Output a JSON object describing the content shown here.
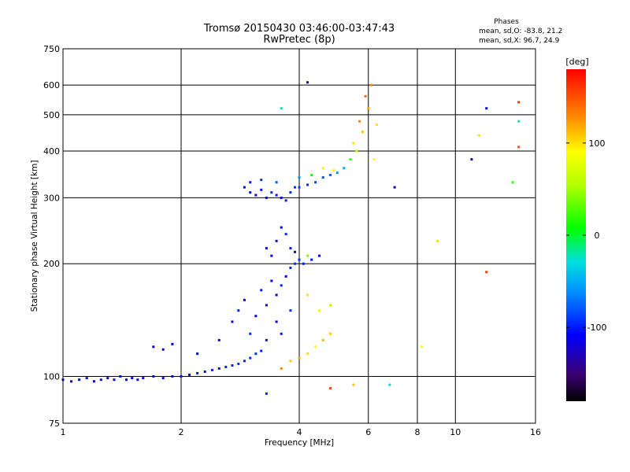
{
  "chart_data": {
    "type": "scatter",
    "title": "Tromsø 20150430 03:46:00-03:47:43",
    "subtitle": "RwPretec (8p)",
    "xlabel": "Frequency [MHz]",
    "ylabel": "Stationary phase Virtual Height [km]",
    "x_scale": "log",
    "y_scale": "log",
    "xlim": [
      1,
      16
    ],
    "ylim": [
      75,
      750
    ],
    "x_ticks": [
      1,
      2,
      4,
      6,
      8,
      10,
      16
    ],
    "y_ticks": [
      75,
      100,
      200,
      300,
      400,
      500,
      600,
      750
    ],
    "grid": true,
    "phase_stats": {
      "heading": "Phases",
      "o_line": "mean, sd,O: -83.8, 21.2",
      "x_line": "mean, sd,X:  96.7, 24.9"
    },
    "colorbar": {
      "unit": "[deg]",
      "ticks": [
        100,
        0,
        -100
      ],
      "range": [
        -180,
        180
      ]
    },
    "series": [
      {
        "comment_key": "E-region trace",
        "points": [
          [
            1.0,
            98,
            -110
          ],
          [
            1.05,
            97,
            -115
          ],
          [
            1.1,
            98,
            -112
          ],
          [
            1.15,
            99,
            -105
          ],
          [
            1.2,
            97,
            -118
          ],
          [
            1.25,
            98,
            -110
          ],
          [
            1.3,
            99,
            -108
          ],
          [
            1.35,
            98,
            -113
          ],
          [
            1.4,
            100,
            -106
          ],
          [
            1.45,
            98,
            -115
          ],
          [
            1.5,
            99,
            -110
          ],
          [
            1.55,
            98,
            -112
          ],
          [
            1.6,
            99,
            -107
          ],
          [
            1.7,
            100,
            -110
          ],
          [
            1.8,
            99,
            -108
          ],
          [
            1.9,
            100,
            -112
          ],
          [
            2.0,
            100,
            -105
          ],
          [
            2.1,
            101,
            -110
          ],
          [
            2.2,
            102,
            -100
          ],
          [
            2.3,
            103,
            -108
          ],
          [
            2.4,
            104,
            -95
          ],
          [
            2.5,
            105,
            -102
          ],
          [
            2.6,
            106,
            -98
          ],
          [
            2.7,
            107,
            -100
          ],
          [
            2.8,
            108,
            -94
          ],
          [
            2.9,
            110,
            -100
          ],
          [
            3.0,
            112,
            -96
          ],
          [
            3.1,
            115,
            -92
          ],
          [
            3.2,
            117,
            -100
          ]
        ]
      },
      {
        "comment_key": "E/Es spread",
        "points": [
          [
            1.7,
            120,
            -112
          ],
          [
            1.8,
            118,
            -115
          ],
          [
            1.9,
            122,
            -108
          ],
          [
            2.2,
            115,
            -110
          ],
          [
            2.5,
            125,
            -105
          ],
          [
            2.7,
            140,
            -110
          ],
          [
            2.8,
            150,
            -100
          ],
          [
            2.9,
            160,
            -108
          ],
          [
            3.0,
            130,
            -95
          ],
          [
            3.1,
            145,
            -112
          ],
          [
            3.2,
            170,
            -100
          ],
          [
            3.3,
            155,
            -120
          ],
          [
            3.4,
            180,
            -105
          ],
          [
            3.5,
            165,
            -115
          ],
          [
            3.6,
            175,
            -98
          ],
          [
            3.7,
            185,
            -110
          ],
          [
            3.8,
            195,
            -100
          ],
          [
            3.9,
            200,
            -92
          ],
          [
            3.5,
            140,
            -110
          ],
          [
            3.3,
            125,
            -100
          ],
          [
            3.6,
            130,
            -105
          ],
          [
            3.8,
            150,
            -95
          ]
        ]
      },
      {
        "comment_key": "F1 cusp",
        "points": [
          [
            3.4,
            210,
            -110
          ],
          [
            3.5,
            230,
            -105
          ],
          [
            3.6,
            250,
            -110
          ],
          [
            3.7,
            240,
            -95
          ],
          [
            3.8,
            220,
            -100
          ],
          [
            3.9,
            215,
            -108
          ],
          [
            4.0,
            205,
            -92
          ],
          [
            4.1,
            200,
            -98
          ],
          [
            4.2,
            210,
            40
          ],
          [
            4.3,
            205,
            -100
          ],
          [
            4.5,
            210,
            -110
          ],
          [
            3.3,
            220,
            -105
          ]
        ]
      },
      {
        "comment_key": "F2 trace",
        "points": [
          [
            2.9,
            320,
            -110
          ],
          [
            3.0,
            310,
            -105
          ],
          [
            3.1,
            305,
            -112
          ],
          [
            3.2,
            315,
            -100
          ],
          [
            3.3,
            300,
            -108
          ],
          [
            3.4,
            310,
            -95
          ],
          [
            3.5,
            305,
            -102
          ],
          [
            3.6,
            300,
            -110
          ],
          [
            3.7,
            295,
            -100
          ],
          [
            3.8,
            310,
            -96
          ],
          [
            3.9,
            320,
            -92
          ],
          [
            4.0,
            320,
            -88
          ],
          [
            4.2,
            325,
            -95
          ],
          [
            4.4,
            330,
            -85
          ],
          [
            4.6,
            340,
            -80
          ],
          [
            4.8,
            345,
            -75
          ],
          [
            5.0,
            350,
            -60
          ],
          [
            5.2,
            360,
            -50
          ],
          [
            5.4,
            380,
            20
          ],
          [
            5.6,
            400,
            60
          ],
          [
            5.8,
            450,
            110
          ],
          [
            6.0,
            520,
            120
          ],
          [
            6.1,
            600,
            130
          ],
          [
            5.5,
            420,
            100
          ],
          [
            5.7,
            480,
            130
          ],
          [
            5.9,
            560,
            140
          ],
          [
            6.2,
            380,
            90
          ],
          [
            6.3,
            470,
            100
          ],
          [
            3.0,
            330,
            -100
          ],
          [
            3.2,
            335,
            -90
          ],
          [
            3.5,
            330,
            -80
          ],
          [
            4.0,
            340,
            -60
          ],
          [
            4.3,
            345,
            10
          ],
          [
            4.6,
            360,
            90
          ],
          [
            4.9,
            355,
            95
          ]
        ]
      },
      {
        "comment_key": "X-mode Es",
        "points": [
          [
            3.6,
            105,
            130
          ],
          [
            3.8,
            110,
            110
          ],
          [
            4.0,
            112,
            120
          ],
          [
            4.2,
            115,
            100
          ],
          [
            4.4,
            120,
            90
          ],
          [
            4.6,
            125,
            115
          ],
          [
            4.8,
            130,
            105
          ],
          [
            4.5,
            150,
            80
          ],
          [
            4.8,
            155,
            60
          ],
          [
            4.2,
            165,
            100
          ]
        ]
      },
      {
        "comment_key": "scattered",
        "points": [
          [
            3.3,
            90,
            -100
          ],
          [
            4.8,
            93,
            150
          ],
          [
            5.5,
            95,
            110
          ],
          [
            6.8,
            95,
            -30
          ],
          [
            8.2,
            120,
            90
          ],
          [
            9.0,
            230,
            100
          ],
          [
            11.0,
            380,
            -130
          ],
          [
            11.5,
            440,
            100
          ],
          [
            12.0,
            190,
            160
          ],
          [
            14.5,
            540,
            160
          ],
          [
            14.5,
            480,
            -20
          ],
          [
            14.5,
            410,
            150
          ],
          [
            14.0,
            330,
            20
          ],
          [
            12.0,
            520,
            -110
          ],
          [
            7.0,
            320,
            -130
          ],
          [
            4.2,
            610,
            -130
          ],
          [
            3.6,
            520,
            -20
          ]
        ]
      }
    ]
  }
}
